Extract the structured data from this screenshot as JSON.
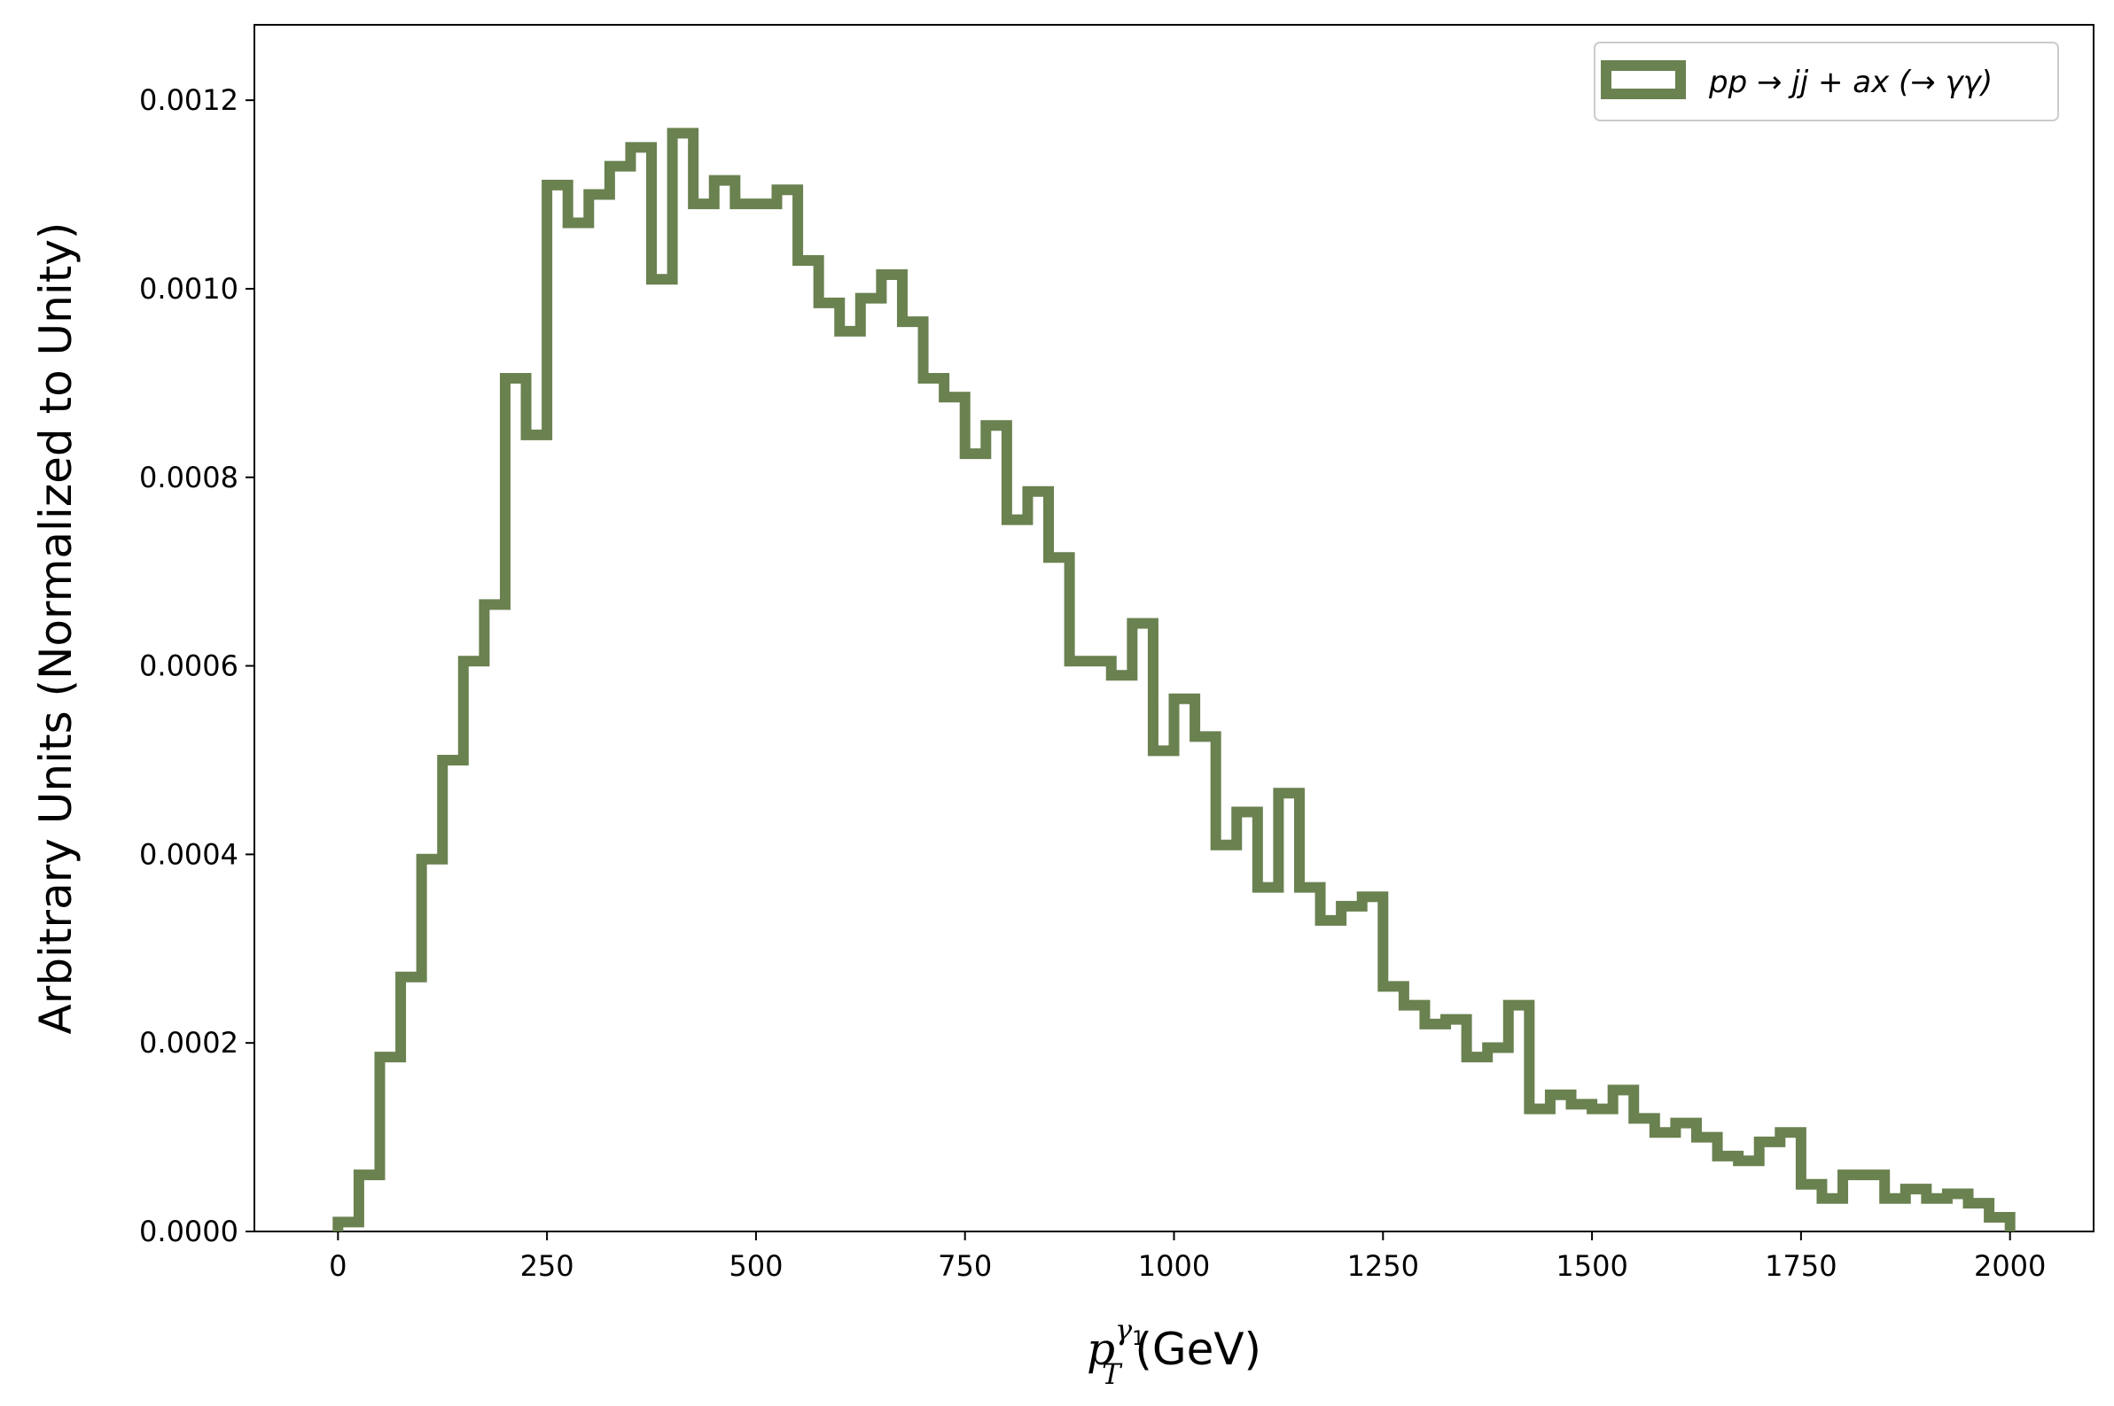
{
  "chart_data": {
    "type": "histogram-step",
    "xlabel": {
      "main": "p",
      "sub": "T",
      "sup": "γ",
      "supsub": "1",
      "units": " (GeV)"
    },
    "ylabel": "Arbitrary Units (Normalized to Unity)",
    "xlim": [
      -100,
      2100
    ],
    "ylim": [
      0,
      0.00128
    ],
    "x_ticks": [
      0,
      250,
      500,
      750,
      1000,
      1250,
      1500,
      1750,
      2000
    ],
    "x_tick_labels": [
      "0",
      "250",
      "500",
      "750",
      "1000",
      "1250",
      "1500",
      "1750",
      "2000"
    ],
    "y_ticks": [
      0,
      0.0002,
      0.0004,
      0.0006,
      0.0008,
      0.001,
      0.0012
    ],
    "y_tick_labels": [
      "0.0000",
      "0.0002",
      "0.0004",
      "0.0006",
      "0.0008",
      "0.0010",
      "0.0012"
    ],
    "legend": {
      "position": "upper right",
      "label": "pp → jj + ax (→ γγ)"
    },
    "series": [
      {
        "name": "pp → jj + ax (→ γγ)",
        "color": "#6a8150",
        "bin_edges": [
          0,
          25,
          50,
          75,
          100,
          125,
          150,
          175,
          200,
          225,
          250,
          275,
          300,
          325,
          350,
          375,
          400,
          425,
          450,
          475,
          500,
          525,
          550,
          575,
          600,
          625,
          650,
          675,
          700,
          725,
          750,
          775,
          800,
          825,
          850,
          875,
          900,
          925,
          950,
          975,
          1000,
          1025,
          1050,
          1075,
          1100,
          1125,
          1150,
          1175,
          1200,
          1225,
          1250,
          1275,
          1300,
          1325,
          1350,
          1375,
          1400,
          1425,
          1450,
          1475,
          1500,
          1525,
          1550,
          1575,
          1600,
          1625,
          1650,
          1675,
          1700,
          1725,
          1750,
          1775,
          1800,
          1825,
          1850,
          1875,
          1900,
          1925,
          1950,
          1975,
          2000
        ],
        "values": [
          1e-05,
          6e-05,
          0.000185,
          0.00027,
          0.000395,
          0.0005,
          0.000605,
          0.000665,
          0.000905,
          0.000845,
          0.00111,
          0.00107,
          0.0011,
          0.00113,
          0.00115,
          0.00101,
          0.001165,
          0.00109,
          0.001115,
          0.00109,
          0.00109,
          0.001105,
          0.00103,
          0.000985,
          0.000955,
          0.00099,
          0.001015,
          0.000965,
          0.000905,
          0.000885,
          0.000825,
          0.000855,
          0.000755,
          0.000785,
          0.000715,
          0.000605,
          0.000605,
          0.00059,
          0.000645,
          0.00051,
          0.000565,
          0.000525,
          0.00041,
          0.000445,
          0.000365,
          0.000465,
          0.000365,
          0.00033,
          0.000345,
          0.000355,
          0.00026,
          0.00024,
          0.00022,
          0.000225,
          0.000185,
          0.000195,
          0.00024,
          0.00013,
          0.000145,
          0.000135,
          0.00013,
          0.00015,
          0.00012,
          0.000105,
          0.000115,
          0.0001,
          8e-05,
          7.5e-05,
          9.5e-05,
          0.000105,
          5e-05,
          3.5e-05,
          6e-05,
          6e-05,
          3.5e-05,
          4.5e-05,
          3.5e-05,
          4e-05,
          3e-05,
          1.5e-05
        ]
      }
    ]
  }
}
